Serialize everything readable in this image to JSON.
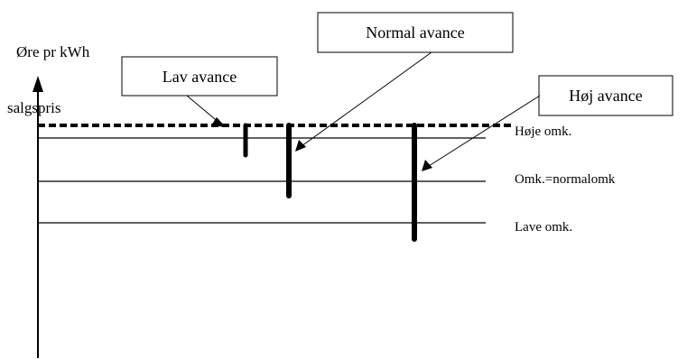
{
  "axis": {
    "y_label": "Øre pr kWh"
  },
  "price_line": {
    "label": "salgspris"
  },
  "cost_lines": [
    {
      "label": "Høje omk."
    },
    {
      "label": "Omk.=normalomk"
    },
    {
      "label": "Lave omk."
    }
  ],
  "margin_boxes": [
    {
      "label": "Lav avance"
    },
    {
      "label": "Normal avance"
    },
    {
      "label": "Høj avance"
    }
  ]
}
